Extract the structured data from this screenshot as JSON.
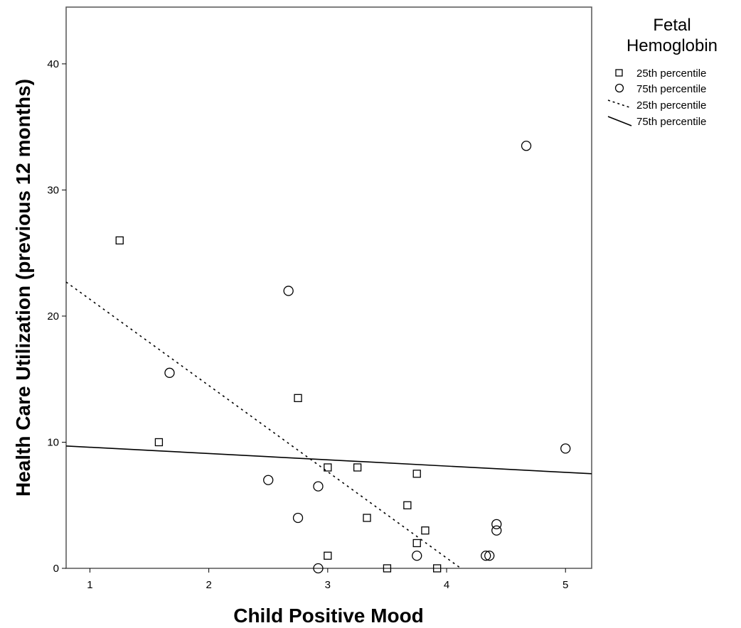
{
  "chart_data": {
    "type": "scatter",
    "xlabel": "Child Positive Mood",
    "ylabel": "Health Care Utilization (previous 12 months)",
    "xlim": [
      0.8,
      5.22
    ],
    "ylim": [
      0,
      44.5
    ],
    "x_ticks": [
      1,
      2,
      3,
      4,
      5
    ],
    "y_ticks": [
      0,
      10,
      20,
      30,
      40
    ],
    "grid": false,
    "legend": {
      "position": "right",
      "title_lines": [
        "Fetal",
        "Hemoglobin"
      ],
      "entries": [
        {
          "marker": "square",
          "label": "25th percentile"
        },
        {
          "marker": "circle",
          "label": "75th percentile"
        },
        {
          "marker": "dashed-line",
          "label": "25th percentile"
        },
        {
          "marker": "solid-line",
          "label": "75th percentile"
        }
      ]
    },
    "series": [
      {
        "marker": "square",
        "points": [
          {
            "x": 1.25,
            "y": 26
          },
          {
            "x": 1.58,
            "y": 10
          },
          {
            "x": 2.75,
            "y": 13.5
          },
          {
            "x": 3.0,
            "y": 8
          },
          {
            "x": 3.25,
            "y": 8
          },
          {
            "x": 3.0,
            "y": 1
          },
          {
            "x": 3.33,
            "y": 4
          },
          {
            "x": 3.5,
            "y": 0
          },
          {
            "x": 3.67,
            "y": 5
          },
          {
            "x": 3.75,
            "y": 7.5
          },
          {
            "x": 3.75,
            "y": 2
          },
          {
            "x": 3.82,
            "y": 3
          },
          {
            "x": 3.92,
            "y": 0
          }
        ]
      },
      {
        "marker": "circle",
        "points": [
          {
            "x": 1.67,
            "y": 15.5
          },
          {
            "x": 2.5,
            "y": 7
          },
          {
            "x": 2.67,
            "y": 22
          },
          {
            "x": 2.75,
            "y": 4
          },
          {
            "x": 2.92,
            "y": 6.5
          },
          {
            "x": 2.92,
            "y": 0
          },
          {
            "x": 3.75,
            "y": 1
          },
          {
            "x": 4.33,
            "y": 1
          },
          {
            "x": 4.36,
            "y": 1
          },
          {
            "x": 4.42,
            "y": 3.5
          },
          {
            "x": 4.42,
            "y": 3
          },
          {
            "x": 4.67,
            "y": 33.5
          },
          {
            "x": 5.0,
            "y": 9.5
          }
        ]
      }
    ],
    "fit_lines": [
      {
        "style": "dashed",
        "x": [
          0.8,
          4.12
        ],
        "y": [
          22.7,
          0
        ]
      },
      {
        "style": "solid",
        "x": [
          0.8,
          5.22
        ],
        "y": [
          9.7,
          7.5
        ]
      }
    ]
  }
}
